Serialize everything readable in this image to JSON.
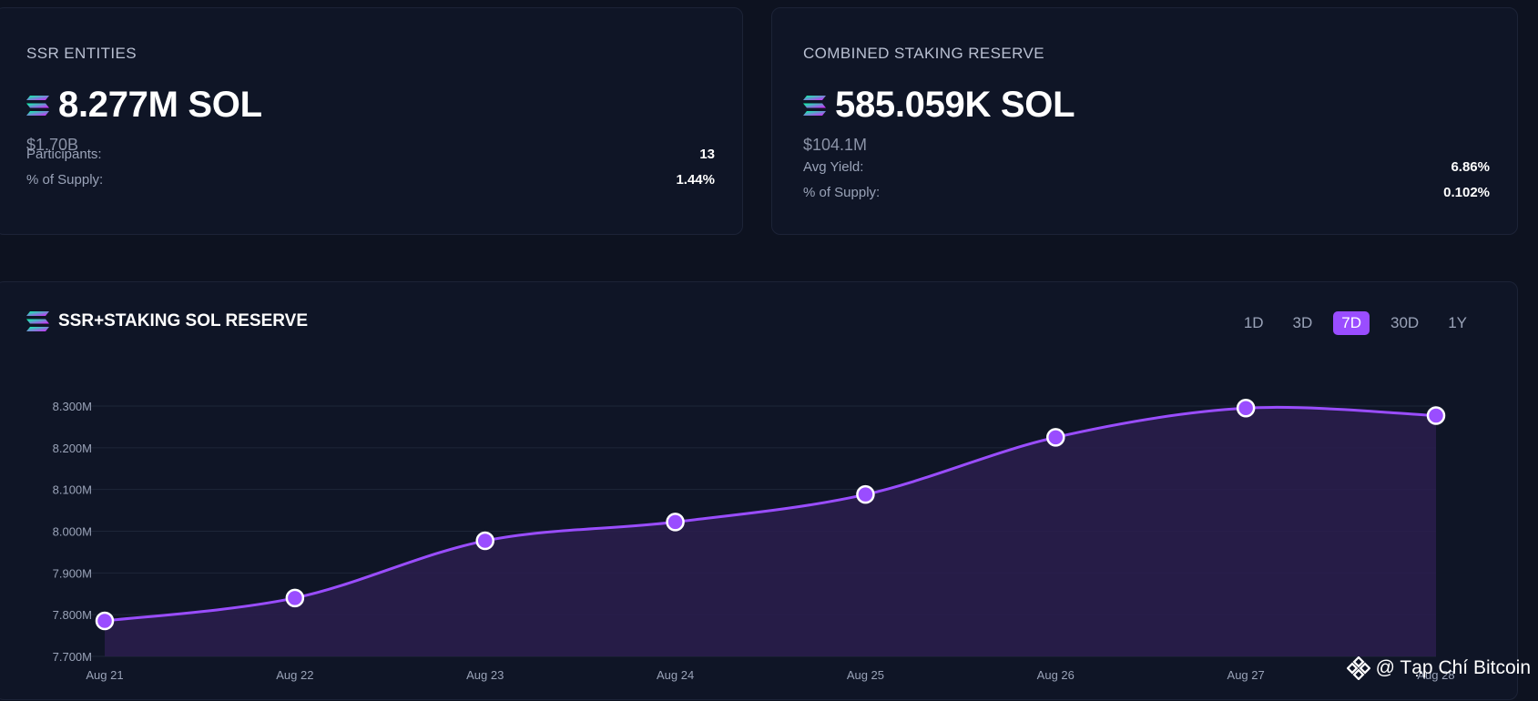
{
  "ssr_card": {
    "label": "SSR ENTITIES",
    "value": "8.277M SOL",
    "usd": "$1.70B",
    "rows": [
      {
        "key": "Participants:",
        "value": "13"
      },
      {
        "key": "% of Supply:",
        "value": "1.44%"
      }
    ]
  },
  "staking_card": {
    "label": "COMBINED STAKING RESERVE",
    "value": "585.059K SOL",
    "usd": "$104.1M",
    "rows": [
      {
        "key": "Avg Yield:",
        "value": "6.86%"
      },
      {
        "key": "% of Supply:",
        "value": "0.102%"
      }
    ]
  },
  "chart_panel": {
    "title": "SSR+STAKING SOL RESERVE",
    "ranges": [
      "1D",
      "3D",
      "7D",
      "30D",
      "1Y"
    ],
    "active_range": "7D"
  },
  "chart_data": {
    "type": "area",
    "title": "SSR+STAKING SOL RESERVE",
    "x": [
      "Aug 21",
      "Aug 22",
      "Aug 23",
      "Aug 24",
      "Aug 25",
      "Aug 26",
      "Aug 27",
      "Aug 28"
    ],
    "series": [
      {
        "values": [
          7.785,
          7.84,
          7.977,
          8.022,
          8.088,
          8.225,
          8.295,
          8.277
        ]
      }
    ],
    "y_ticks": [
      "8.300M",
      "8.200M",
      "8.100M",
      "8.000M",
      "7.900M",
      "7.800M",
      "7.700M"
    ],
    "y_tick_values": [
      8.3,
      8.2,
      8.1,
      8.0,
      7.9,
      7.8,
      7.7
    ],
    "ylim": [
      7.7,
      8.3
    ],
    "unit": "M",
    "grid": true,
    "legend": "none",
    "line_color": "#9a4dff",
    "fill_color": "#2a1d4d"
  },
  "watermark": {
    "text": "@ Tạp Chí Bitcoin",
    "icon": "binance-icon"
  },
  "colors": {
    "accent": "#9a4dff",
    "background": "#0d1220",
    "card": "#0f1526"
  }
}
